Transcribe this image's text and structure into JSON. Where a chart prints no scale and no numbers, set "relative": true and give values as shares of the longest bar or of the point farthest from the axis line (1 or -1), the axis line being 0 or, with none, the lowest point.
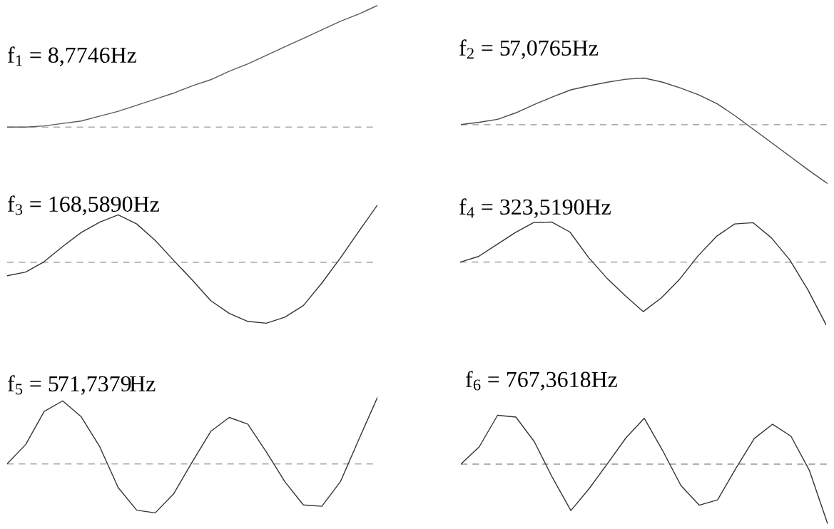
{
  "chart_data": [
    {
      "type": "line",
      "title": "f$_{1}$ = 8,7746Hz",
      "relative": true,
      "categories": [
        null,
        null,
        null,
        null,
        null,
        null,
        null,
        null,
        null,
        null,
        null,
        null,
        null,
        null,
        null,
        null,
        null,
        null,
        null,
        null,
        null
      ],
      "series": [
        {
          "color": "#5a5a5a",
          "values": [
            0,
            0.0,
            0.01,
            0.03,
            0.05,
            0.09,
            0.13,
            0.18,
            0.23,
            0.28,
            0.34,
            0.39,
            0.46,
            0.52,
            0.59,
            0.66,
            0.73,
            0.8,
            0.87,
            0.93,
            1.0
          ]
        }
      ],
      "ref_lines": [
        {
          "axis": "y",
          "value": 0,
          "color": "#b0b0b0",
          "line_style": "dashed"
        }
      ]
    },
    {
      "type": "line",
      "title": "f$_{2}$ = 57,0765Hz",
      "relative": true,
      "categories": [
        null,
        null,
        null,
        null,
        null,
        null,
        null,
        null,
        null,
        null,
        null,
        null,
        null,
        null,
        null,
        null,
        null,
        null,
        null,
        null,
        null
      ],
      "series": [
        {
          "color": "#4a4a4a",
          "values": [
            0,
            0.04,
            0.09,
            0.2,
            0.34,
            0.47,
            0.59,
            0.66,
            0.72,
            0.77,
            0.79,
            0.72,
            0.62,
            0.5,
            0.35,
            0.14,
            -0.09,
            -0.32,
            -0.55,
            -0.78,
            -1.0
          ]
        }
      ],
      "ref_lines": [
        {
          "axis": "y",
          "value": 0,
          "color": "#b0b0b0",
          "line_style": "dashed"
        }
      ]
    },
    {
      "type": "line",
      "title": "f$_{3}$ = 168,5890Hz",
      "relative": true,
      "categories": [
        null,
        null,
        null,
        null,
        null,
        null,
        null,
        null,
        null,
        null,
        null,
        null,
        null,
        null,
        null,
        null,
        null,
        null,
        null,
        null,
        null
      ],
      "series": [
        {
          "color": "#333333",
          "values": [
            -0.22,
            -0.16,
            0.01,
            0.26,
            0.49,
            0.66,
            0.78,
            0.63,
            0.36,
            0.03,
            -0.29,
            -0.63,
            -0.84,
            -0.97,
            -1.0,
            -0.9,
            -0.71,
            -0.34,
            0.07,
            0.51,
            0.94
          ]
        }
      ],
      "ref_lines": [
        {
          "axis": "y",
          "value": 0,
          "color": "#b0b0b0",
          "line_style": "dashed"
        }
      ]
    },
    {
      "type": "line",
      "title": "f$_{4}$ = 323,5190Hz",
      "relative": true,
      "categories": [
        null,
        null,
        null,
        null,
        null,
        null,
        null,
        null,
        null,
        null,
        null,
        null,
        null,
        null,
        null,
        null,
        null,
        null,
        null,
        null,
        null
      ],
      "series": [
        {
          "color": "#333333",
          "values": [
            0,
            0.09,
            0.28,
            0.47,
            0.63,
            0.64,
            0.48,
            0.08,
            -0.25,
            -0.53,
            -0.79,
            -0.57,
            -0.27,
            0.1,
            0.41,
            0.61,
            0.63,
            0.39,
            0.04,
            -0.44,
            -1.0
          ]
        }
      ],
      "ref_lines": [
        {
          "axis": "y",
          "value": 0,
          "color": "#b0b0b0",
          "line_style": "dashed"
        }
      ]
    },
    {
      "type": "line",
      "title": "f$_{5}$ = 571,7379Hz",
      "relative": true,
      "categories": [
        null,
        null,
        null,
        null,
        null,
        null,
        null,
        null,
        null,
        null,
        null,
        null,
        null,
        null,
        null,
        null,
        null,
        null,
        null,
        null,
        null
      ],
      "series": [
        {
          "color": "#333333",
          "values": [
            0,
            0.29,
            0.79,
            0.95,
            0.71,
            0.26,
            -0.36,
            -0.7,
            -0.74,
            -0.45,
            0.03,
            0.49,
            0.7,
            0.6,
            0.18,
            -0.27,
            -0.62,
            -0.64,
            -0.27,
            0.37,
            1.0
          ]
        }
      ],
      "ref_lines": [
        {
          "axis": "y",
          "value": 0,
          "color": "#b0b0b0",
          "line_style": "dashed"
        }
      ]
    },
    {
      "type": "line",
      "title": "f$_{6}$ = 767,3618Hz",
      "relative": true,
      "categories": [
        null,
        null,
        null,
        null,
        null,
        null,
        null,
        null,
        null,
        null,
        null,
        null,
        null,
        null,
        null,
        null,
        null,
        null,
        null,
        null,
        null
      ],
      "series": [
        {
          "color": "#333333",
          "values": [
            0,
            0.29,
            0.82,
            0.79,
            0.38,
            -0.23,
            -0.78,
            -0.41,
            0.01,
            0.44,
            0.77,
            0.23,
            -0.36,
            -0.69,
            -0.6,
            -0.07,
            0.43,
            0.67,
            0.47,
            -0.1,
            -1.0
          ]
        }
      ],
      "ref_lines": [
        {
          "axis": "y",
          "value": 0,
          "color": "#b0b0b0",
          "line_style": "dashed"
        }
      ]
    }
  ]
}
